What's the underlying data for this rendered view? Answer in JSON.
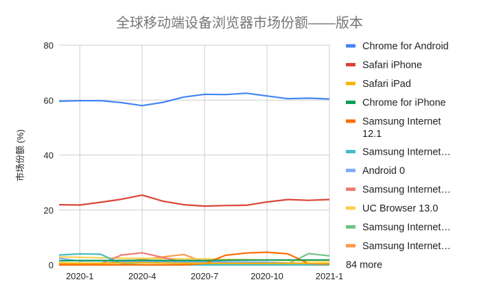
{
  "chart_data": {
    "type": "line",
    "title": "全球移动端设备浏览器市场份额——版本",
    "xlabel": "",
    "ylabel": "市场份额 (%)",
    "ylim": [
      0,
      80
    ],
    "y_ticks": [
      "0",
      "20",
      "40",
      "60",
      "80"
    ],
    "x": [
      "2019-12",
      "2020-1",
      "2020-2",
      "2020-3",
      "2020-4",
      "2020-5",
      "2020-6",
      "2020-7",
      "2020-8",
      "2020-9",
      "2020-10",
      "2020-11",
      "2020-12",
      "2021-1"
    ],
    "x_tick_labels": [
      {
        "index": 1,
        "label": "2020-1"
      },
      {
        "index": 4,
        "label": "2020-4"
      },
      {
        "index": 7,
        "label": "2020-7"
      },
      {
        "index": 10,
        "label": "2020-10"
      },
      {
        "index": 13,
        "label": "2021-1"
      }
    ],
    "grid": true,
    "legend_position": "right",
    "legend_more": "84 more",
    "series": [
      {
        "name": "Chrome for Android",
        "legend_label": "Chrome for Android",
        "color": "#4285f4",
        "values": [
          59.6,
          59.8,
          59.8,
          59.1,
          58.0,
          59.2,
          61.1,
          62.1,
          62.0,
          62.5,
          61.5,
          60.5,
          60.7,
          60.4
        ]
      },
      {
        "name": "Safari iPhone",
        "legend_label": "Safari iPhone",
        "color": "#db4437",
        "values": [
          21.9,
          21.8,
          22.8,
          23.9,
          25.4,
          23.2,
          21.9,
          21.4,
          21.6,
          21.7,
          22.9,
          23.8,
          23.5,
          23.8
        ]
      },
      {
        "name": "Safari iPad",
        "legend_label": "Safari iPad",
        "color": "#f4b400",
        "values": [
          0.7,
          0.6,
          0.6,
          0.7,
          0.8,
          0.7,
          0.6,
          0.6,
          0.6,
          0.6,
          0.6,
          0.6,
          0.6,
          0.6
        ]
      },
      {
        "name": "Chrome for iPhone",
        "legend_label": "Chrome for iPhone",
        "color": "#0f9d58",
        "values": [
          1.5,
          1.6,
          1.6,
          1.6,
          1.7,
          1.6,
          1.6,
          1.6,
          1.7,
          1.8,
          1.8,
          1.8,
          1.8,
          1.8
        ]
      },
      {
        "name": "Samsung Internet 12.1",
        "legend_label": [
          "Samsung Internet",
          "12.1"
        ],
        "color": "#ff6d00",
        "values": [
          0,
          0,
          0,
          0,
          0,
          0,
          0,
          0.5,
          3.5,
          4.3,
          4.6,
          4.0,
          0.5,
          0.3
        ]
      },
      {
        "name": "Samsung Internet…",
        "legend_label": "Samsung Internet…",
        "color": "#46bdc6",
        "values": [
          3.6,
          4.0,
          3.9,
          0.4,
          0,
          0,
          0,
          0,
          0,
          0,
          0,
          0,
          0,
          0
        ]
      },
      {
        "name": "Android 0",
        "legend_label": "Android 0",
        "color": "#7baaf7",
        "values": [
          2.4,
          1.4,
          1.5,
          1.3,
          1.2,
          1.2,
          1.1,
          1.2,
          1.1,
          1.1,
          1.0,
          0.7,
          0.6,
          0.4
        ]
      },
      {
        "name": "Samsung Internet…",
        "legend_label": "Samsung Internet…",
        "color": "#f07b72",
        "values": [
          0,
          0,
          0.4,
          3.6,
          4.4,
          2.7,
          1.0,
          0.3,
          0,
          0,
          0,
          0,
          0,
          0
        ]
      },
      {
        "name": "UC Browser 13.0",
        "legend_label": "UC Browser 13.0",
        "color": "#fcd04f",
        "values": [
          2.9,
          2.8,
          2.6,
          2.4,
          2.4,
          2.3,
          2.2,
          2.2,
          2.0,
          1.9,
          1.8,
          1.6,
          1.5,
          1.4
        ]
      },
      {
        "name": "Samsung Internet…",
        "legend_label": "Samsung Internet…",
        "color": "#71c287",
        "values": [
          0,
          0,
          0,
          0,
          0,
          0,
          0,
          0,
          0,
          0,
          0,
          0.3,
          4.1,
          3.3
        ]
      },
      {
        "name": "Samsung Internet…",
        "legend_label": "Samsung Internet…",
        "color": "#ff994d",
        "values": [
          0.2,
          0.3,
          0.5,
          1.0,
          2.0,
          2.9,
          3.8,
          1.0,
          0.4,
          0.2,
          0.1,
          0.1,
          0,
          0
        ]
      }
    ]
  }
}
